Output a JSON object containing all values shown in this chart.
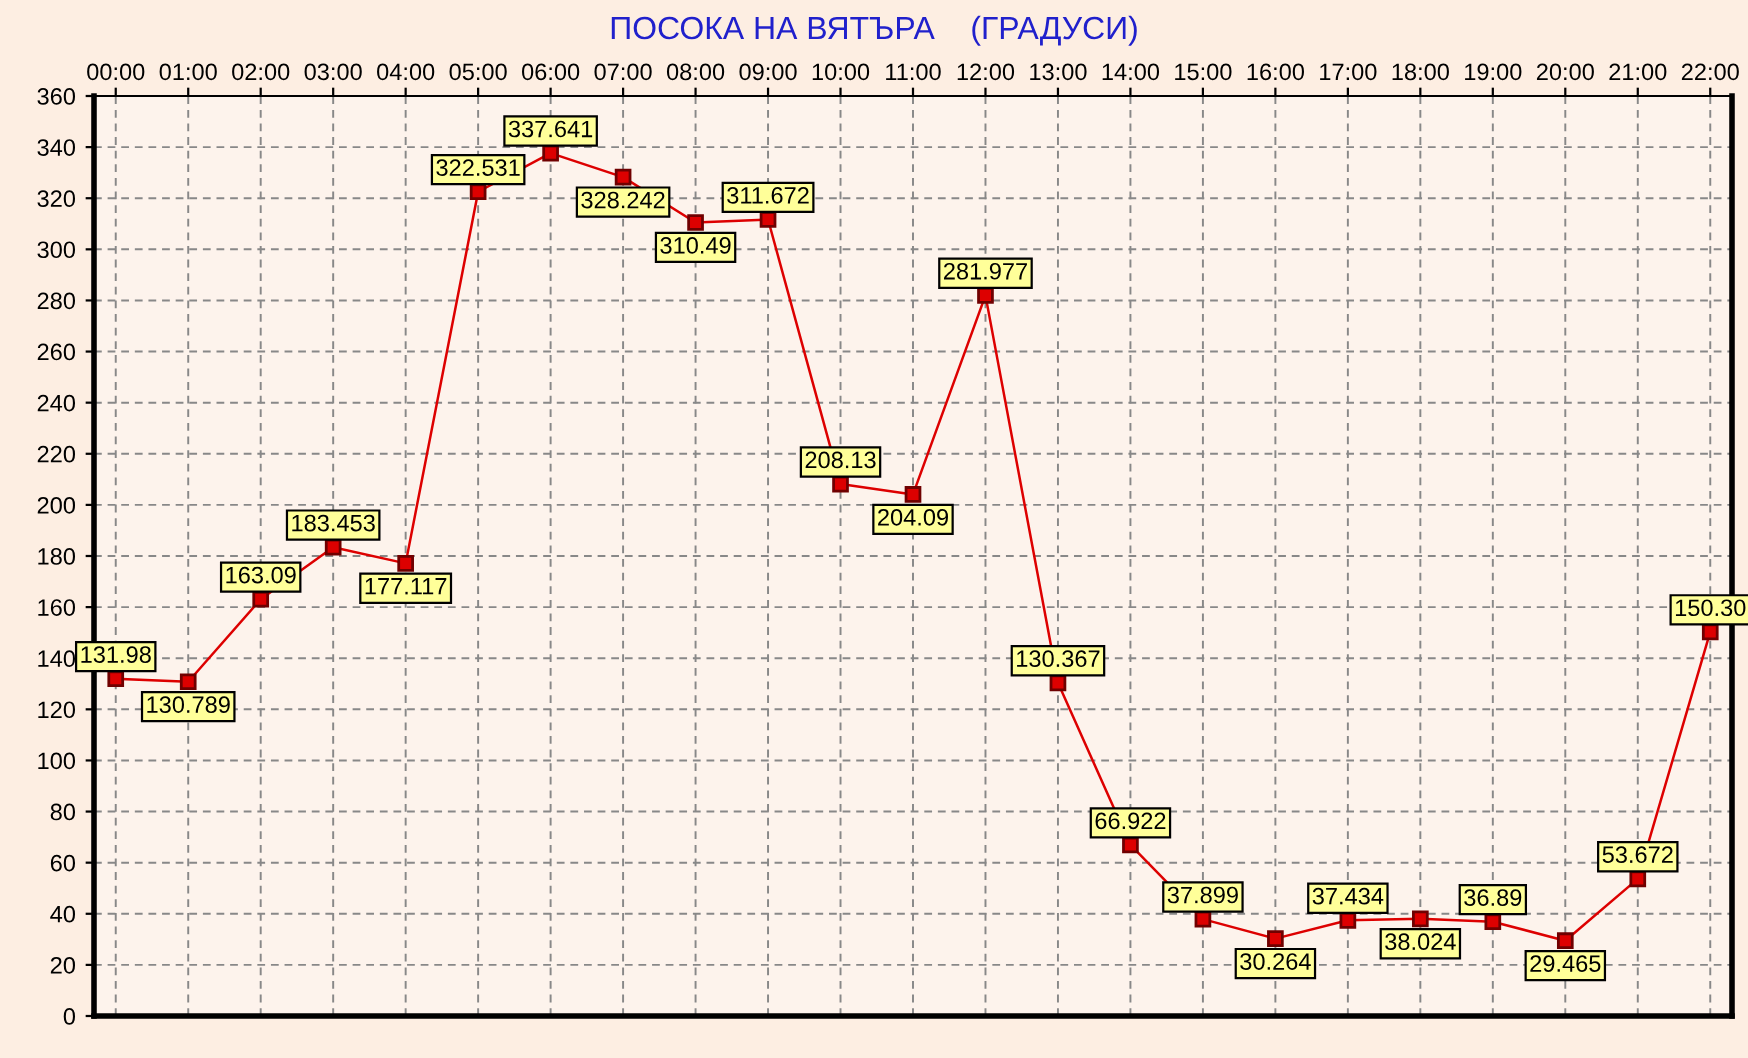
{
  "chart_data": {
    "type": "line",
    "title": "ПОСОКА НА ВЯТЪРА    (ГРАДУСИ)",
    "categories": [
      "00:00",
      "01:00",
      "02:00",
      "03:00",
      "04:00",
      "05:00",
      "06:00",
      "07:00",
      "08:00",
      "09:00",
      "10:00",
      "11:00",
      "12:00",
      "13:00",
      "14:00",
      "15:00",
      "16:00",
      "17:00",
      "18:00",
      "19:00",
      "20:00",
      "21:00",
      "22:00"
    ],
    "series": [
      {
        "color": "#dd0000",
        "values": [
          131.98,
          130.789,
          163.09,
          183.453,
          177.117,
          322.531,
          337.641,
          328.242,
          310.49,
          311.672,
          208.13,
          204.09,
          281.977,
          130.367,
          66.922,
          37.899,
          30.264,
          37.434,
          38.024,
          36.89,
          29.465,
          53.672,
          150.3
        ],
        "value_labels": [
          "131.98",
          "130.789",
          "163.09",
          "183.453",
          "177.117",
          "322.531",
          "337.641",
          "328.242",
          "310.49",
          "311.672",
          "208.13",
          "204.09",
          "281.977",
          "130.367",
          "66.922",
          "37.899",
          "30.264",
          "37.434",
          "38.024",
          "36.89",
          "29.465",
          "53.672",
          "150.30"
        ]
      }
    ],
    "ylim": [
      0,
      360
    ],
    "yticks": [
      0,
      20,
      40,
      60,
      80,
      100,
      120,
      140,
      160,
      180,
      200,
      220,
      240,
      260,
      280,
      300,
      320,
      340,
      360
    ],
    "grid": true,
    "marker": "square",
    "line_style": "solid",
    "legend": false
  }
}
